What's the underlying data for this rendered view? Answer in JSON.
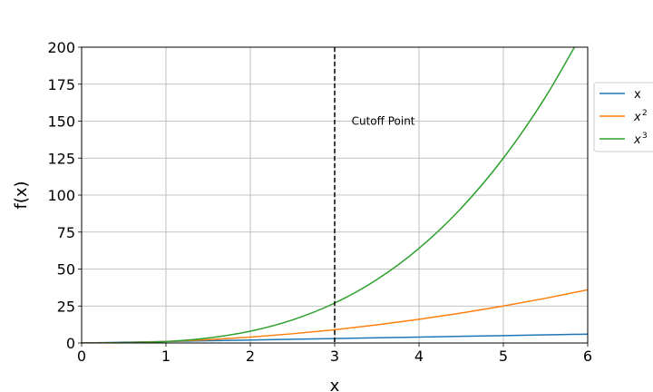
{
  "chart_data": {
    "type": "line",
    "title": "",
    "xlabel": "x",
    "ylabel": "f(x)",
    "xlim": [
      0,
      6
    ],
    "ylim": [
      0,
      200
    ],
    "grid": true,
    "legend_position": "right, outside plot",
    "x_ticks": [
      "0",
      "1",
      "2",
      "3",
      "4",
      "5",
      "6"
    ],
    "y_ticks": [
      "0",
      "25",
      "50",
      "75",
      "100",
      "125",
      "150",
      "175",
      "200"
    ],
    "x": [
      0,
      0.5,
      1,
      1.5,
      2,
      2.5,
      3,
      3.5,
      4,
      4.5,
      5,
      5.5,
      6
    ],
    "series": [
      {
        "name": "x",
        "color": "#1f77b4",
        "values": [
          0,
          0.5,
          1,
          1.5,
          2,
          2.5,
          3,
          3.5,
          4,
          4.5,
          5,
          5.5,
          6
        ]
      },
      {
        "name": "x2",
        "color": "#ff7f0e",
        "values": [
          0,
          0.25,
          1,
          2.25,
          4,
          6.25,
          9,
          12.25,
          16,
          20.25,
          25,
          30.25,
          36
        ]
      },
      {
        "name": "x3",
        "color": "#2ca02c",
        "values": [
          0,
          0.125,
          1,
          3.375,
          8,
          15.625,
          27,
          42.875,
          64,
          91.125,
          125,
          166.375,
          216
        ]
      }
    ],
    "annotations": [
      {
        "type": "vline",
        "x": 3,
        "style": "dashed",
        "color": "#000000"
      },
      {
        "type": "text",
        "text": "Cutoff Point",
        "x": 3.2,
        "y": 150
      }
    ],
    "legend": [
      {
        "label": "x",
        "sup": ""
      },
      {
        "label": "x",
        "sup": "2"
      },
      {
        "label": "x",
        "sup": "3"
      }
    ]
  }
}
